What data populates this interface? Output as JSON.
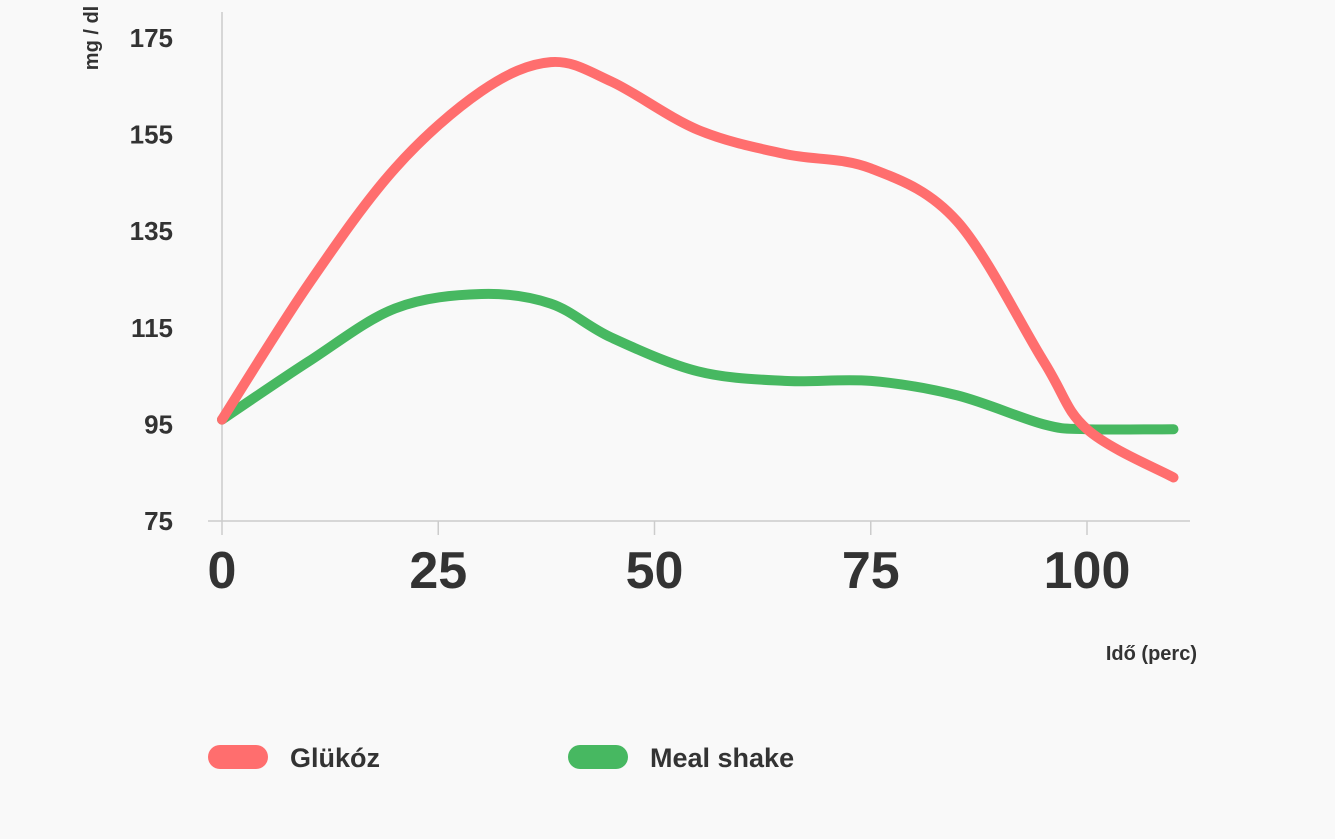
{
  "chart_data": {
    "type": "line",
    "xlabel": "Idő (perc)",
    "ylabel": "mg / dl",
    "x_ticks": [
      0,
      25,
      50,
      75,
      100
    ],
    "y_ticks": [
      75,
      95,
      115,
      135,
      155,
      175
    ],
    "xlim": [
      0,
      110
    ],
    "ylim": [
      75,
      175
    ],
    "grid": false,
    "legend_position": "bottom-left",
    "series": [
      {
        "name": "Glükóz",
        "color": "#ff6e6e",
        "points": [
          [
            0,
            96
          ],
          [
            10,
            124
          ],
          [
            20,
            148
          ],
          [
            30,
            164
          ],
          [
            38,
            170
          ],
          [
            45,
            166
          ],
          [
            55,
            156
          ],
          [
            65,
            151
          ],
          [
            75,
            148
          ],
          [
            85,
            137
          ],
          [
            95,
            108
          ],
          [
            100,
            94
          ],
          [
            110,
            84
          ]
        ]
      },
      {
        "name": "Meal shake",
        "color": "#47b861",
        "points": [
          [
            0,
            96
          ],
          [
            10,
            108
          ],
          [
            20,
            119
          ],
          [
            30,
            122
          ],
          [
            38,
            120
          ],
          [
            45,
            113
          ],
          [
            55,
            106
          ],
          [
            65,
            104
          ],
          [
            75,
            104
          ],
          [
            85,
            101
          ],
          [
            95,
            95
          ],
          [
            100,
            94
          ],
          [
            110,
            94
          ]
        ]
      }
    ]
  }
}
